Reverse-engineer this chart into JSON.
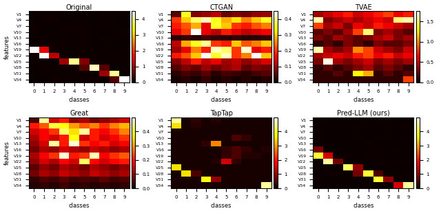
{
  "titles": [
    "Original",
    "CTGAN",
    "TVAE",
    "Great",
    "TapTap",
    "Pred-LLM (ours)"
  ],
  "y_labels": [
    "V1",
    "V4",
    "V7",
    "V10",
    "V13",
    "V16",
    "V19",
    "V22",
    "V25",
    "V28",
    "V31",
    "V34"
  ],
  "x_labels": [
    "0",
    "1",
    "2",
    "3",
    "4",
    "5",
    "6",
    "7",
    "8",
    "9"
  ],
  "n_rows": 12,
  "n_cols": 10,
  "colormap": "hot",
  "clim_original": [
    0,
    4.5
  ],
  "clim_ctgan": [
    0,
    0.45
  ],
  "clim_tvae": [
    0,
    1.75
  ],
  "clim_great": [
    0,
    0.5
  ],
  "clim_taptap": [
    0,
    5.0
  ],
  "clim_predllm": [
    0,
    5.0
  ],
  "cbar_ticks_original": [
    0,
    1,
    2,
    3,
    4
  ],
  "cbar_ticks_ctgan": [
    0.0,
    0.1,
    0.2,
    0.3,
    0.4
  ],
  "cbar_ticks_tvae": [
    0.0,
    0.5,
    1.0,
    1.5
  ],
  "cbar_ticks_great": [
    0.0,
    0.1,
    0.2,
    0.3,
    0.4
  ],
  "cbar_ticks_taptap": [
    0,
    1,
    2,
    3,
    4
  ],
  "cbar_ticks_predllm": [
    0,
    1,
    2,
    3,
    4
  ],
  "figsize": [
    6.4,
    3.1
  ],
  "dpi": 100
}
